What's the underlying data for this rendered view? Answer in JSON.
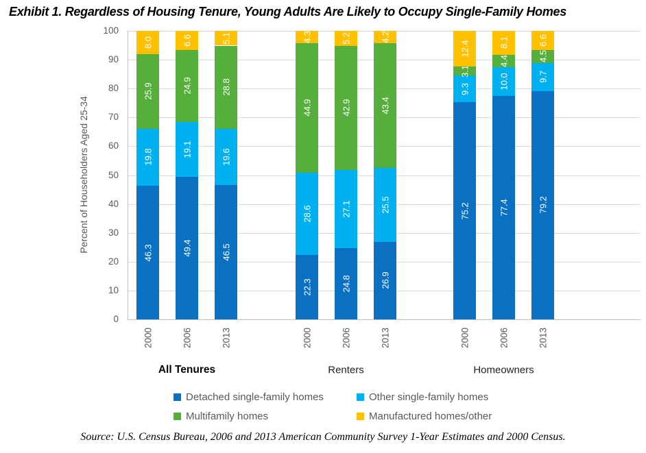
{
  "source_note": "Source: U.S. Census Bureau, 2006 and 2013 American Community Survey 1-Year Estimates and 2000 Census.",
  "chart_data": {
    "type": "bar",
    "stacked": true,
    "title": "Exhibit 1. Regardless of Housing Tenure, Young Adults Are Likely to Occupy Single-Family Homes",
    "ylabel": "Percent of Householders Aged 25-34",
    "xlabel": "",
    "ylim": [
      0,
      100
    ],
    "yticks": [
      0,
      10,
      20,
      30,
      40,
      50,
      60,
      70,
      80,
      90,
      100
    ],
    "grid": "horizontal",
    "legend_position": "bottom",
    "value_labels": "inside, rotated 90deg, one decimal",
    "series": [
      {
        "name": "Detached single-family homes",
        "color": "#0A70C2"
      },
      {
        "name": "Other single-family homes",
        "color": "#00B0F0"
      },
      {
        "name": "Multifamily homes",
        "color": "#56AE3C"
      },
      {
        "name": "Manufactured homes/other",
        "color": "#FFC000"
      }
    ],
    "groups": [
      {
        "label": "All Tenures",
        "emphasis": true,
        "bars": [
          {
            "x": "2000",
            "values": [
              46.3,
              19.8,
              25.9,
              8.0
            ]
          },
          {
            "x": "2006",
            "values": [
              49.4,
              19.1,
              24.9,
              6.6
            ]
          },
          {
            "x": "2013",
            "values": [
              46.5,
              19.6,
              28.8,
              5.1
            ]
          }
        ]
      },
      {
        "label": "Renters",
        "emphasis": false,
        "bars": [
          {
            "x": "2000",
            "values": [
              22.3,
              28.6,
              44.9,
              4.3
            ]
          },
          {
            "x": "2006",
            "values": [
              24.8,
              27.1,
              42.9,
              5.2
            ]
          },
          {
            "x": "2013",
            "values": [
              26.9,
              25.5,
              43.4,
              4.2
            ]
          }
        ]
      },
      {
        "label": "Homeowners",
        "emphasis": false,
        "bars": [
          {
            "x": "2000",
            "values": [
              75.2,
              9.3,
              3.1,
              12.4
            ]
          },
          {
            "x": "2006",
            "values": [
              77.4,
              10.0,
              4.4,
              8.1
            ]
          },
          {
            "x": "2013",
            "values": [
              79.2,
              9.7,
              4.5,
              6.6
            ]
          }
        ]
      }
    ],
    "colors": {
      "axis_line": "#BFBFBF",
      "grid_line": "#D9D9D9",
      "tick_text": "#595959",
      "value_label_text": "#FFFFFF"
    }
  }
}
